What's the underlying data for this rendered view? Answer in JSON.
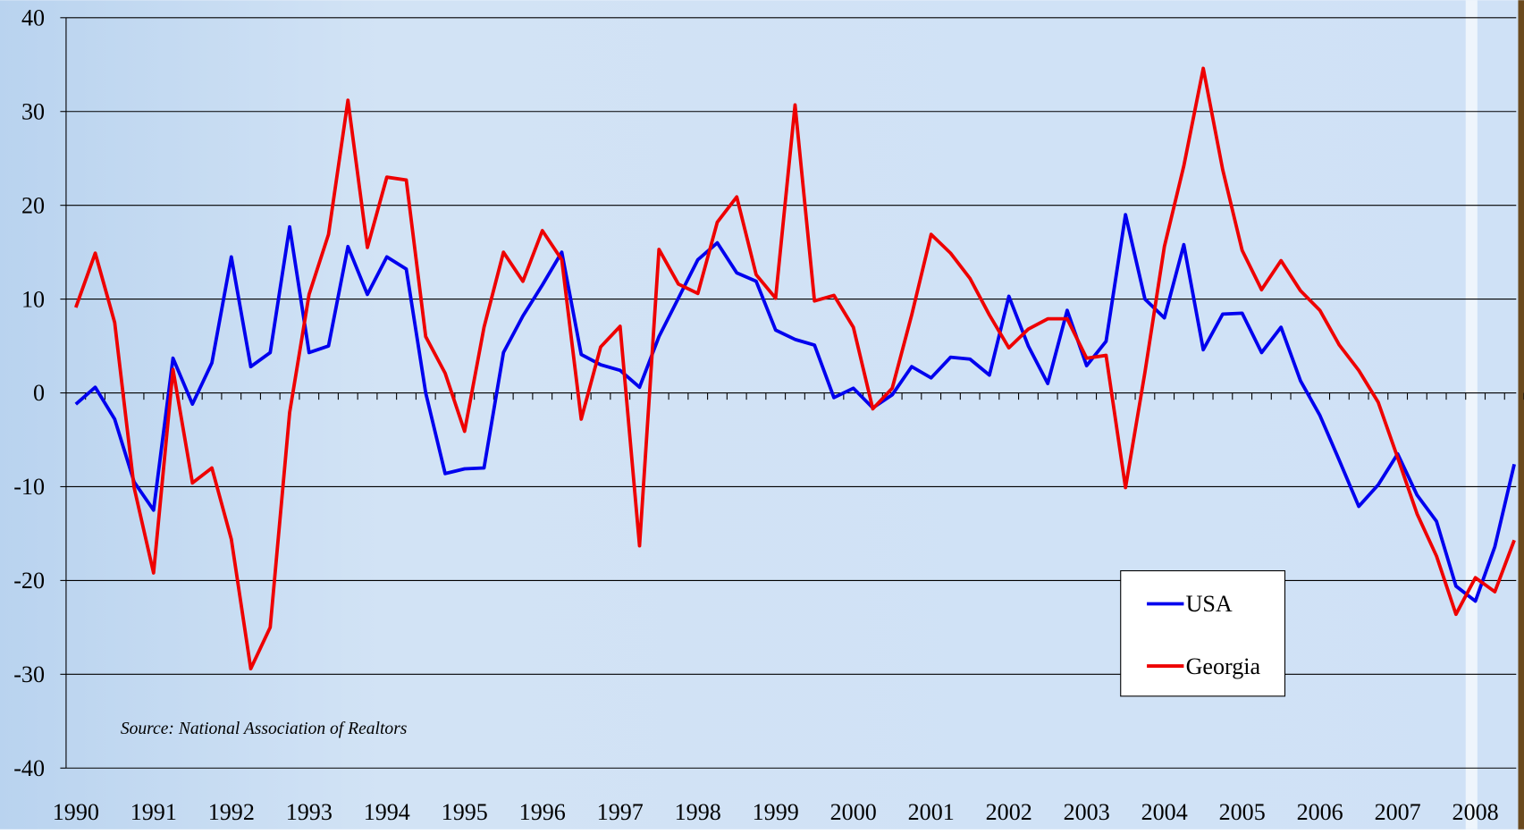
{
  "chart_data": {
    "type": "line",
    "source": "Source: National Association of Realtors",
    "categories": [
      "1990",
      null,
      null,
      null,
      "1991",
      null,
      null,
      null,
      "1992",
      null,
      null,
      null,
      "1993",
      null,
      null,
      null,
      "1994",
      null,
      null,
      null,
      "1995",
      null,
      null,
      null,
      "1996",
      null,
      null,
      null,
      "1997",
      null,
      null,
      null,
      "1998",
      null,
      null,
      null,
      "1999",
      null,
      null,
      null,
      "2000",
      null,
      null,
      null,
      "2001",
      null,
      null,
      null,
      "2002",
      null,
      null,
      null,
      "2003",
      null,
      null,
      null,
      "2004",
      null,
      null,
      null,
      "2005",
      null,
      null,
      null,
      "2006",
      null,
      null,
      null,
      "2007",
      null,
      null,
      null,
      "2008",
      null,
      null
    ],
    "series": [
      {
        "name": "USA",
        "color": "#0000ee",
        "values": [
          -1.2,
          0.6,
          -2.8,
          -9.5,
          -12.5,
          3.7,
          -1.2,
          3.2,
          14.5,
          2.8,
          4.3,
          17.7,
          4.3,
          5,
          15.6,
          10.5,
          14.5,
          13.2,
          0,
          -8.6,
          -8.1,
          -8,
          4.3,
          8.2,
          11.5,
          15,
          4.1,
          3,
          2.4,
          0.6,
          6,
          10.1,
          14.2,
          16,
          12.8,
          11.9,
          6.7,
          5.7,
          5.1,
          -0.5,
          0.5,
          -1.6,
          -0.2,
          2.8,
          1.6,
          3.8,
          3.6,
          1.9,
          10.3,
          5,
          1,
          8.8,
          2.9,
          5.5,
          19,
          10,
          8,
          15.8,
          4.6,
          8.4,
          8.5,
          4.3,
          7,
          1.3,
          -2.4,
          -7.2,
          -12.1,
          -9.8,
          -6.5,
          -10.9,
          -13.7,
          -20.6,
          -22.2,
          -16.4,
          -7.6
        ]
      },
      {
        "name": "Georgia",
        "color": "#ee0000",
        "values": [
          9.1,
          14.9,
          7.5,
          -10.1,
          -19.2,
          2.5,
          -9.6,
          -8,
          -15.6,
          -29.4,
          -25,
          -2.1,
          10.5,
          16.9,
          31.2,
          15.5,
          23,
          22.7,
          6,
          2.1,
          -4.1,
          7,
          15,
          11.9,
          17.3,
          14.2,
          -2.8,
          4.9,
          7.1,
          -16.3,
          15.3,
          11.6,
          10.6,
          18.2,
          20.9,
          12.6,
          10.1,
          30.7,
          9.8,
          10.4,
          7,
          -1.7,
          0.5,
          8.3,
          16.9,
          14.9,
          12.2,
          8.3,
          4.8,
          6.8,
          7.9,
          7.9,
          3.7,
          4,
          -10.1,
          2.2,
          15.6,
          24.2,
          34.6,
          23.8,
          15.2,
          11,
          14.1,
          10.9,
          8.8,
          5.1,
          2.4,
          -1,
          -6.9,
          -12.9,
          -17.4,
          -23.6,
          -19.7,
          -21.2,
          -15.7
        ]
      }
    ],
    "ylim": [
      -40,
      40
    ],
    "yticks": [
      -40,
      -30,
      -20,
      -10,
      0,
      10,
      20,
      30,
      40
    ],
    "grid": true
  }
}
